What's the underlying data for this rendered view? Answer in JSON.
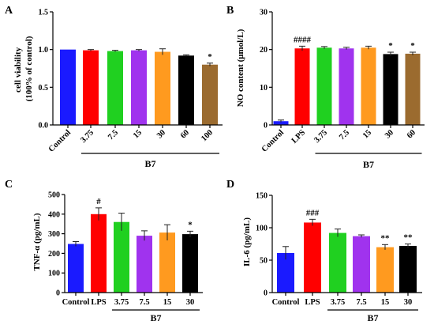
{
  "chart_data": [
    {
      "panel": "A",
      "type": "bar",
      "categories": [
        "Control",
        "3.75",
        "7.5",
        "15",
        "30",
        "60",
        "100"
      ],
      "values": [
        1.0,
        0.99,
        0.98,
        0.99,
        0.97,
        0.92,
        0.8
      ],
      "errors": [
        0.0,
        0.01,
        0.01,
        0.01,
        0.04,
        0.01,
        0.02
      ],
      "colors": [
        "#1a1aff",
        "#ff0000",
        "#20d020",
        "#a033ee",
        "#ff9a1f",
        "#000000",
        "#9b6b2f"
      ],
      "annotations": [
        "",
        "",
        "",
        "",
        "",
        "",
        "*"
      ],
      "ylabel": [
        "cell viability",
        "(100% of control)"
      ],
      "yticks": [
        0,
        0.5,
        1.0,
        1.5
      ],
      "ytick_labels": [
        "0.0",
        "0.5",
        "1.0",
        "1.5"
      ],
      "ylim": [
        0,
        1.5
      ],
      "group": {
        "label": "B7",
        "start_index": 1,
        "end_index": 6
      }
    },
    {
      "panel": "B",
      "type": "bar",
      "categories": [
        "Control",
        "LPS",
        "3.75",
        "7.5",
        "15",
        "30",
        "60"
      ],
      "values": [
        1.0,
        20.3,
        20.5,
        20.3,
        20.5,
        18.8,
        18.9
      ],
      "errors": [
        0.3,
        0.6,
        0.3,
        0.3,
        0.4,
        0.5,
        0.4
      ],
      "colors": [
        "#1a1aff",
        "#ff0000",
        "#20d020",
        "#a033ee",
        "#ff9a1f",
        "#000000",
        "#9b6b2f"
      ],
      "annotations": [
        "",
        "####",
        "",
        "",
        "",
        "*",
        "*"
      ],
      "ylabel": [
        "NO content (μmol/L)"
      ],
      "yticks": [
        0,
        10,
        20,
        30
      ],
      "ytick_labels": [
        "0",
        "10",
        "20",
        "30"
      ],
      "ylim": [
        0,
        30
      ],
      "group": {
        "label": "B7",
        "start_index": 2,
        "end_index": 6
      }
    },
    {
      "panel": "C",
      "type": "bar",
      "categories": [
        "Control",
        "LPS",
        "3.75",
        "7.5",
        "15",
        "30"
      ],
      "values": [
        248,
        400,
        360,
        290,
        306,
        298
      ],
      "errors": [
        12,
        32,
        45,
        25,
        40,
        15
      ],
      "colors": [
        "#1a1aff",
        "#ff0000",
        "#20d020",
        "#a033ee",
        "#ff9a1f",
        "#000000"
      ],
      "annotations": [
        "",
        "#",
        "",
        "",
        "",
        "*"
      ],
      "ylabel": [
        "TNF-α (pg/mL)"
      ],
      "yticks": [
        0,
        100,
        200,
        300,
        400,
        500
      ],
      "ytick_labels": [
        "0",
        "100",
        "200",
        "300",
        "400",
        "500"
      ],
      "ylim": [
        0,
        500
      ],
      "group": {
        "label": "B7",
        "start_index": 2,
        "end_index": 5
      }
    },
    {
      "panel": "D",
      "type": "bar",
      "categories": [
        "Control",
        "LPS",
        "3.75",
        "7.5",
        "15",
        "30"
      ],
      "values": [
        61,
        108,
        92,
        87,
        70,
        72
      ],
      "errors": [
        10,
        5,
        6,
        2,
        4,
        3
      ],
      "colors": [
        "#1a1aff",
        "#ff0000",
        "#20d020",
        "#a033ee",
        "#ff9a1f",
        "#000000"
      ],
      "annotations": [
        "",
        "###",
        "",
        "",
        "**",
        "**"
      ],
      "ylabel": [
        "IL-6 (pg/mL)"
      ],
      "yticks": [
        0,
        50,
        100,
        150
      ],
      "ytick_labels": [
        "0",
        "50",
        "100",
        "150"
      ],
      "ylim": [
        0,
        150
      ],
      "group": {
        "label": "B7",
        "start_index": 2,
        "end_index": 5
      }
    }
  ]
}
